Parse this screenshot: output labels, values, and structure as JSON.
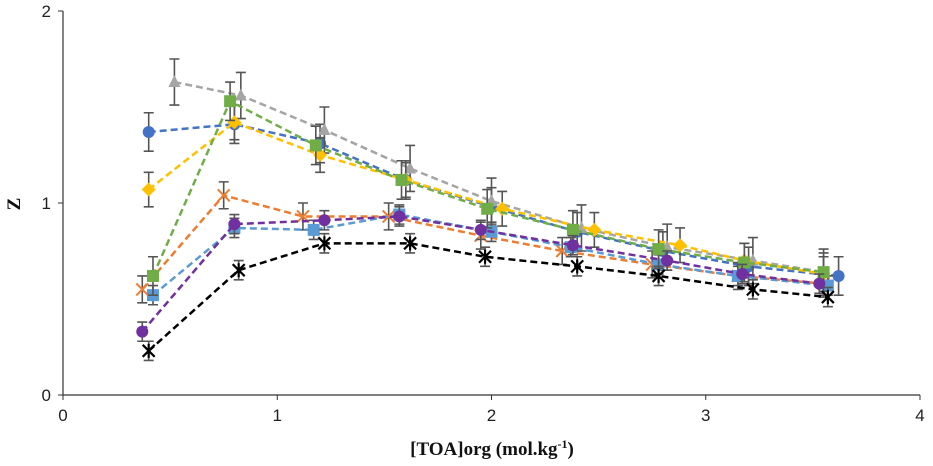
{
  "chart_data": {
    "type": "line",
    "xlabel": "[TOA]org (mol.kg",
    "xlabel_sup": "-1",
    "xlabel_end": ")",
    "ylabel": "Z",
    "xlim": [
      0,
      4
    ],
    "ylim": [
      0,
      2
    ],
    "xticks": [
      0,
      1,
      2,
      3,
      4
    ],
    "yticks": [
      0,
      1,
      2
    ],
    "grid": false,
    "legend": "none",
    "line_style": "dashed",
    "series": [
      {
        "color": "#4472C4",
        "marker": "circle",
        "x": [
          0.4,
          0.8,
          1.2,
          1.6,
          2.0,
          2.4,
          2.8,
          3.2,
          3.62
        ],
        "y": [
          1.37,
          1.41,
          1.31,
          1.12,
          0.98,
          0.85,
          0.75,
          0.67,
          0.62
        ],
        "err": 0.1
      },
      {
        "color": "#ED7D31",
        "marker": "x",
        "x": [
          0.37,
          0.75,
          1.12,
          1.52,
          1.95,
          2.33,
          2.75,
          3.15,
          3.55
        ],
        "y": [
          0.55,
          1.04,
          0.93,
          0.93,
          0.83,
          0.75,
          0.68,
          0.62,
          0.58
        ],
        "err": 0.07
      },
      {
        "color": "#A5A5A5",
        "marker": "triangle",
        "x": [
          0.52,
          0.83,
          1.22,
          1.62,
          2.0,
          2.42,
          2.82,
          3.22,
          3.55
        ],
        "y": [
          1.63,
          1.56,
          1.38,
          1.18,
          1.01,
          0.87,
          0.77,
          0.7,
          0.64
        ],
        "err": 0.12
      },
      {
        "color": "#FFC000",
        "marker": "diamond",
        "x": [
          0.4,
          0.8,
          1.2,
          1.6,
          2.05,
          2.48,
          2.88,
          3.18,
          3.55
        ],
        "y": [
          1.07,
          1.42,
          1.25,
          1.12,
          0.97,
          0.86,
          0.78,
          0.7,
          0.63
        ],
        "err": 0.09
      },
      {
        "color": "#5B9BD5",
        "marker": "square",
        "x": [
          0.42,
          0.8,
          1.17,
          1.57,
          2.0,
          2.37,
          2.78,
          3.15,
          3.57
        ],
        "y": [
          0.52,
          0.87,
          0.86,
          0.94,
          0.85,
          0.77,
          0.68,
          0.62,
          0.57
        ],
        "err": 0.05
      },
      {
        "color": "#70AD47",
        "marker": "square",
        "x": [
          0.42,
          0.78,
          1.18,
          1.58,
          1.98,
          2.38,
          2.78,
          3.18,
          3.55
        ],
        "y": [
          0.62,
          1.53,
          1.3,
          1.12,
          0.97,
          0.86,
          0.76,
          0.69,
          0.64
        ],
        "err": 0.1
      },
      {
        "color": "#7030A0",
        "marker": "circle",
        "x": [
          0.37,
          0.8,
          1.22,
          1.57,
          1.95,
          2.38,
          2.82,
          3.17,
          3.53
        ],
        "y": [
          0.33,
          0.89,
          0.91,
          0.93,
          0.86,
          0.78,
          0.7,
          0.63,
          0.58
        ],
        "err": 0.05
      },
      {
        "color": "#000000",
        "marker": "star",
        "x": [
          0.4,
          0.82,
          1.22,
          1.62,
          1.97,
          2.4,
          2.78,
          3.22,
          3.57
        ],
        "y": [
          0.23,
          0.65,
          0.79,
          0.79,
          0.72,
          0.67,
          0.62,
          0.55,
          0.51
        ],
        "err": 0.05
      }
    ]
  }
}
